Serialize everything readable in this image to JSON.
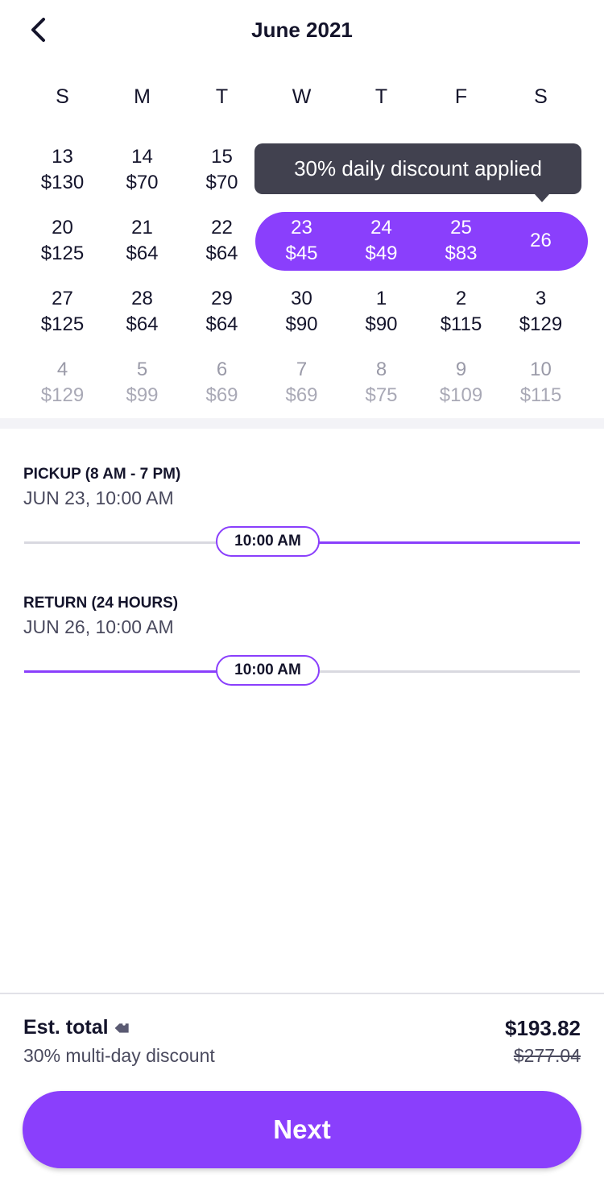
{
  "header": {
    "title": "June 2021",
    "back_icon": "chevron-left-icon"
  },
  "calendar": {
    "weekdays": [
      "S",
      "M",
      "T",
      "W",
      "T",
      "F",
      "S"
    ],
    "weeks": [
      [
        {
          "d": "13",
          "p": "$130"
        },
        {
          "d": "14",
          "p": "$70"
        },
        {
          "d": "15",
          "p": "$70"
        },
        null,
        null,
        null,
        null
      ],
      [
        {
          "d": "20",
          "p": "$125"
        },
        {
          "d": "21",
          "p": "$64"
        },
        {
          "d": "22",
          "p": "$64"
        },
        {
          "d": "23",
          "p": "$45",
          "sel": true
        },
        {
          "d": "24",
          "p": "$49",
          "sel": true
        },
        {
          "d": "25",
          "p": "$83",
          "sel": true
        },
        {
          "d": "26",
          "p": "",
          "sel": true
        }
      ],
      [
        {
          "d": "27",
          "p": "$125"
        },
        {
          "d": "28",
          "p": "$64"
        },
        {
          "d": "29",
          "p": "$64"
        },
        {
          "d": "30",
          "p": "$90"
        },
        {
          "d": "1",
          "p": "$90"
        },
        {
          "d": "2",
          "p": "$115"
        },
        {
          "d": "3",
          "p": "$129"
        }
      ],
      [
        {
          "d": "4",
          "p": "$129",
          "dim": true
        },
        {
          "d": "5",
          "p": "$99",
          "dim": true
        },
        {
          "d": "6",
          "p": "$69",
          "dim": true
        },
        {
          "d": "7",
          "p": "$69",
          "dim": true
        },
        {
          "d": "8",
          "p": "$75",
          "dim": true
        },
        {
          "d": "9",
          "p": "$109",
          "dim": true
        },
        {
          "d": "10",
          "p": "$115",
          "dim": true
        }
      ]
    ],
    "tooltip": "30% daily discount applied"
  },
  "pickup": {
    "label": "PICKUP (8 AM - 7 PM)",
    "value": "JUN 23, 10:00 AM",
    "thumb": "10:00 AM"
  },
  "return": {
    "label": "RETURN (24 HOURS)",
    "value": "JUN 26, 10:00 AM",
    "thumb": "10:00 AM"
  },
  "footer": {
    "est_label": "Est. total",
    "tag_icon": "tag-icon",
    "discount": "30% multi-day discount",
    "total": "$193.82",
    "original": "$277.04",
    "next_label": "Next"
  },
  "colors": {
    "accent": "#8a3ffc",
    "tooltip": "#41414f"
  }
}
